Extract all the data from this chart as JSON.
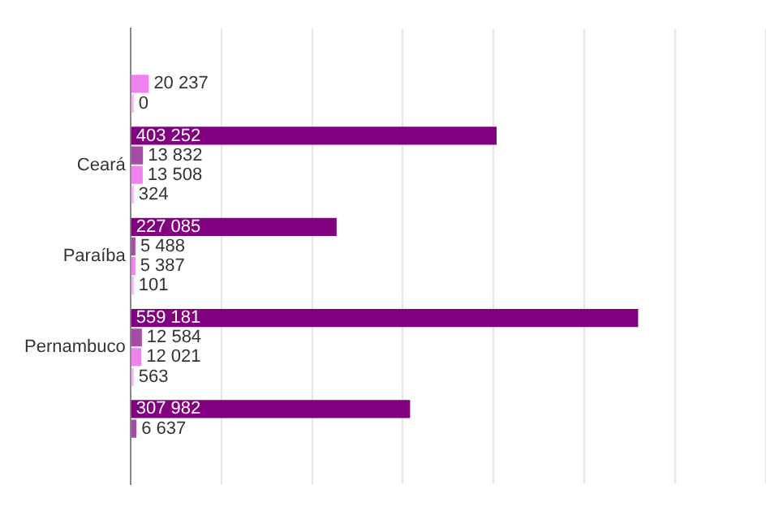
{
  "chart_data": {
    "type": "bar",
    "orientation": "horizontal",
    "categories": [
      null,
      "Ceará",
      "Paraíba",
      "Pernambuco",
      null
    ],
    "series": [
      {
        "color": "#800080",
        "values": [
          null,
          403252,
          227085,
          559181,
          307982
        ],
        "value_labels": [
          null,
          "403 252",
          "227 085",
          "559 181",
          "307 982"
        ]
      },
      {
        "color": "#a64ca6",
        "values": [
          null,
          13832,
          5488,
          12584,
          6637
        ],
        "value_labels": [
          null,
          "13 832",
          "5 488",
          "12 584",
          "6 637"
        ]
      },
      {
        "color": "#ee82ee",
        "values": [
          20237,
          13508,
          5387,
          12021,
          null
        ],
        "value_labels": [
          "20 237",
          "13 508",
          "5 387",
          "12 021",
          null
        ]
      },
      {
        "color": "#f4b6f4",
        "values": [
          0,
          324,
          101,
          563,
          null
        ],
        "value_labels": [
          "0",
          "324",
          "101",
          "563",
          null
        ]
      }
    ],
    "xlim": [
      0,
      700000
    ],
    "xticks": [
      {
        "value": 0,
        "label": null
      },
      {
        "value": 100000,
        "label": null
      },
      {
        "value": 200000,
        "label": null
      },
      {
        "value": 300000,
        "label": null
      },
      {
        "value": 400000,
        "label": null
      },
      {
        "value": 500000,
        "label": null
      },
      {
        "value": 600000,
        "label": null
      },
      {
        "value": 700000,
        "label": null
      }
    ],
    "grid": "x",
    "legend": false,
    "tick_labels": "y"
  }
}
